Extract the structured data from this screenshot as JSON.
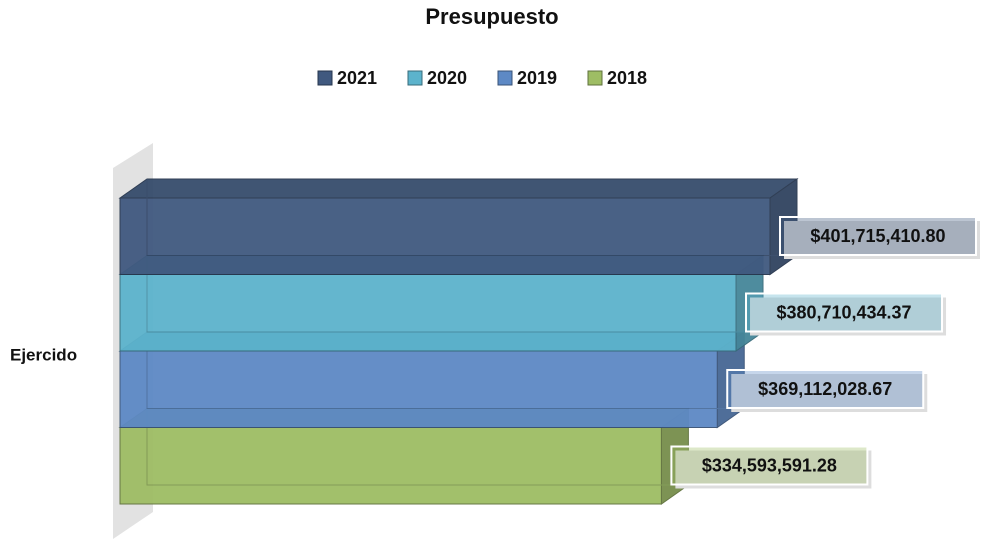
{
  "chart_data": {
    "type": "bar3d",
    "title": "Presupuesto",
    "categories": [
      "Ejercido"
    ],
    "series": [
      {
        "name": "2021",
        "color": "#40597f",
        "values": [
          401715410.8
        ],
        "value_labels": [
          "$401,715,410.80"
        ]
      },
      {
        "name": "2020",
        "color": "#5cb3cc",
        "values": [
          380710434.37
        ],
        "value_labels": [
          "$380,710,434.37"
        ]
      },
      {
        "name": "2019",
        "color": "#5d89c5",
        "values": [
          369112028.67
        ],
        "value_labels": [
          "$369,112,028.67"
        ]
      },
      {
        "name": "2018",
        "color": "#9ebd64",
        "values": [
          334593591.28
        ],
        "value_labels": [
          "$334,593,591.28"
        ]
      }
    ],
    "legend": "top"
  }
}
